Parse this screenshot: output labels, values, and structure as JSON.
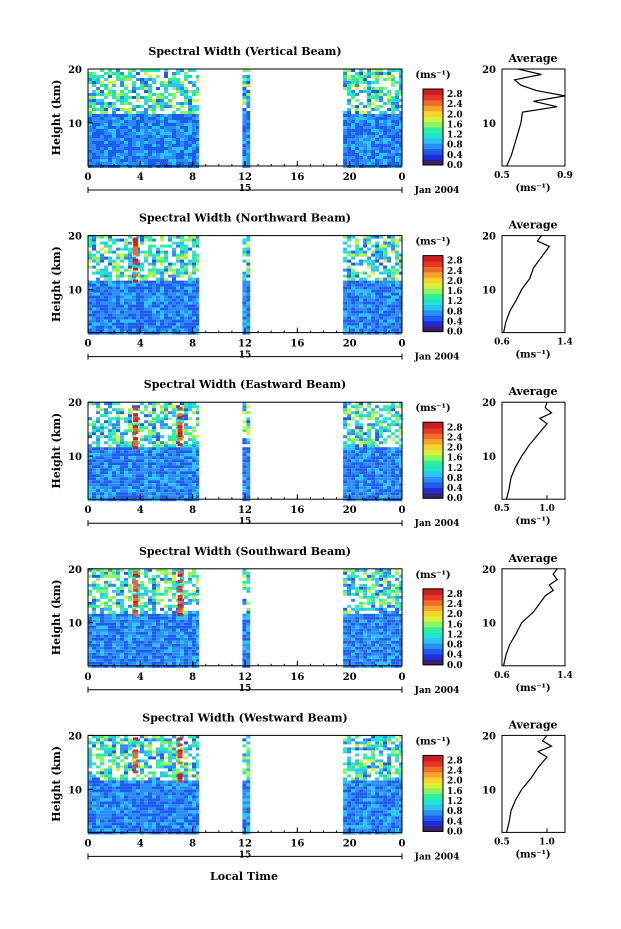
{
  "figure": {
    "xlabel": "Local Time",
    "date_label": "Jan 2004",
    "day_label": "15",
    "colorbar_unit": "(ms⁻¹)",
    "average_title": "Average",
    "average_xlabel": "(ms⁻¹)",
    "ylabel": "Height (km)"
  },
  "chart_data": [
    {
      "type": "heatmap",
      "title": "Spectral Width (Vertical Beam)",
      "ylabel": "Height (km)",
      "xlabel": "Local Time",
      "xlim": [
        0,
        24
      ],
      "xticks": [
        "0",
        "4",
        "8",
        "12",
        "16",
        "20",
        "0"
      ],
      "ylim": [
        2,
        20
      ],
      "yticks": [
        "10",
        "20"
      ],
      "colorbar": {
        "unit": "(ms⁻¹)",
        "ticks": [
          "0.0",
          "0.4",
          "0.8",
          "1.2",
          "1.6",
          "2.0",
          "2.4",
          "2.8"
        ],
        "range": [
          0,
          3.0
        ]
      },
      "data_segments": [
        [
          0,
          8.5
        ],
        [
          11.8,
          12.4
        ],
        [
          19.5,
          24
        ]
      ],
      "average_profile": {
        "title": "Average",
        "xlabel": "(ms⁻¹)",
        "xticks": [
          "0.5",
          "0.9"
        ],
        "xlim": [
          0.5,
          0.9
        ],
        "height": [
          2,
          4,
          6,
          8,
          10,
          12,
          13,
          14,
          15,
          16,
          17,
          18,
          19,
          20
        ],
        "value": [
          0.53,
          0.56,
          0.58,
          0.6,
          0.62,
          0.63,
          0.85,
          0.7,
          0.9,
          0.72,
          0.62,
          0.58,
          0.75,
          0.6
        ]
      }
    },
    {
      "type": "heatmap",
      "title": "Spectral Width (Northward Beam)",
      "ylabel": "Height (km)",
      "xlim": [
        0,
        24
      ],
      "xticks": [
        "0",
        "4",
        "8",
        "12",
        "16",
        "20",
        "0"
      ],
      "ylim": [
        2,
        20
      ],
      "yticks": [
        "10",
        "20"
      ],
      "colorbar": {
        "unit": "(ms⁻¹)",
        "ticks": [
          "0.0",
          "0.4",
          "0.8",
          "1.2",
          "1.6",
          "2.0",
          "2.4",
          "2.8"
        ],
        "range": [
          0,
          3.0
        ]
      },
      "data_segments": [
        [
          0,
          8.5
        ],
        [
          11.8,
          12.4
        ],
        [
          19.5,
          24
        ]
      ],
      "average_profile": {
        "title": "Average",
        "xlabel": "(ms⁻¹)",
        "xticks": [
          "0.6",
          "1.4"
        ],
        "xlim": [
          0.6,
          1.4
        ],
        "height": [
          2,
          4,
          6,
          8,
          10,
          12,
          14,
          15,
          16,
          17,
          18,
          19,
          20
        ],
        "value": [
          0.62,
          0.65,
          0.7,
          0.78,
          0.85,
          0.95,
          1.0,
          1.05,
          1.1,
          1.15,
          1.2,
          1.05,
          1.1
        ]
      }
    },
    {
      "type": "heatmap",
      "title": "Spectral Width (Eastward Beam)",
      "ylabel": "Height (km)",
      "xlim": [
        0,
        24
      ],
      "xticks": [
        "0",
        "4",
        "8",
        "12",
        "16",
        "20",
        "0"
      ],
      "ylim": [
        2,
        20
      ],
      "yticks": [
        "10",
        "20"
      ],
      "colorbar": {
        "unit": "(ms⁻¹)",
        "ticks": [
          "0.0",
          "0.4",
          "0.8",
          "1.2",
          "1.6",
          "2.0",
          "2.4",
          "2.8"
        ],
        "range": [
          0,
          3.0
        ]
      },
      "data_segments": [
        [
          0,
          8.5
        ],
        [
          11.8,
          12.4
        ],
        [
          19.5,
          24
        ]
      ],
      "average_profile": {
        "title": "Average",
        "xlabel": "(ms⁻¹)",
        "xticks": [
          "0.5",
          "1.0"
        ],
        "xlim": [
          0.5,
          1.2
        ],
        "height": [
          2,
          4,
          6,
          8,
          10,
          12,
          14,
          15,
          16,
          17,
          18,
          19,
          20
        ],
        "value": [
          0.55,
          0.58,
          0.6,
          0.65,
          0.72,
          0.8,
          0.9,
          0.95,
          1.0,
          0.92,
          1.05,
          0.98,
          1.0
        ]
      }
    },
    {
      "type": "heatmap",
      "title": "Spectral Width (Southward Beam)",
      "ylabel": "Height (km)",
      "xlim": [
        0,
        24
      ],
      "xticks": [
        "0",
        "4",
        "8",
        "12",
        "16",
        "20",
        "0"
      ],
      "ylim": [
        2,
        20
      ],
      "yticks": [
        "10",
        "20"
      ],
      "colorbar": {
        "unit": "(ms⁻¹)",
        "ticks": [
          "0.0",
          "0.4",
          "0.8",
          "1.2",
          "1.6",
          "2.0",
          "2.4",
          "2.8"
        ],
        "range": [
          0,
          3.0
        ]
      },
      "data_segments": [
        [
          0,
          8.5
        ],
        [
          11.8,
          12.4
        ],
        [
          19.5,
          24
        ]
      ],
      "average_profile": {
        "title": "Average",
        "xlabel": "(ms⁻¹)",
        "xticks": [
          "0.6",
          "1.4"
        ],
        "xlim": [
          0.6,
          1.4
        ],
        "height": [
          2,
          4,
          6,
          8,
          10,
          12,
          14,
          15,
          16,
          17,
          18,
          19,
          20
        ],
        "value": [
          0.62,
          0.65,
          0.7,
          0.78,
          0.85,
          1.0,
          1.1,
          1.15,
          1.25,
          1.2,
          1.3,
          1.25,
          1.3
        ]
      }
    },
    {
      "type": "heatmap",
      "title": "Spectral Width (Westward Beam)",
      "ylabel": "Height (km)",
      "xlabel": "Local Time",
      "xlim": [
        0,
        24
      ],
      "xticks": [
        "0",
        "4",
        "8",
        "12",
        "16",
        "20",
        "0"
      ],
      "ylim": [
        2,
        20
      ],
      "yticks": [
        "10",
        "20"
      ],
      "colorbar": {
        "unit": "(ms⁻¹)",
        "ticks": [
          "0.0",
          "0.4",
          "0.8",
          "1.2",
          "1.6",
          "2.0",
          "2.4",
          "2.8"
        ],
        "range": [
          0,
          3.0
        ]
      },
      "data_segments": [
        [
          0,
          8.5
        ],
        [
          11.8,
          12.4
        ],
        [
          19.5,
          24
        ]
      ],
      "average_profile": {
        "title": "Average",
        "xlabel": "(ms⁻¹)",
        "xticks": [
          "0.5",
          "1.0"
        ],
        "xlim": [
          0.5,
          1.2
        ],
        "height": [
          2,
          4,
          6,
          8,
          10,
          12,
          14,
          15,
          16,
          17,
          18,
          19,
          20
        ],
        "value": [
          0.55,
          0.58,
          0.6,
          0.65,
          0.72,
          0.82,
          0.9,
          0.95,
          1.0,
          0.9,
          1.05,
          0.95,
          1.0
        ]
      }
    }
  ],
  "colors": {
    "colormap": [
      "#3a1f6e",
      "#1f2bd6",
      "#1e5cf0",
      "#2a8cf5",
      "#28c4f2",
      "#22e3d0",
      "#2ff09a",
      "#8af560",
      "#d8f23c",
      "#f7d32c",
      "#f7a52a",
      "#f06a2a",
      "#e8342a",
      "#c81e1e"
    ]
  }
}
